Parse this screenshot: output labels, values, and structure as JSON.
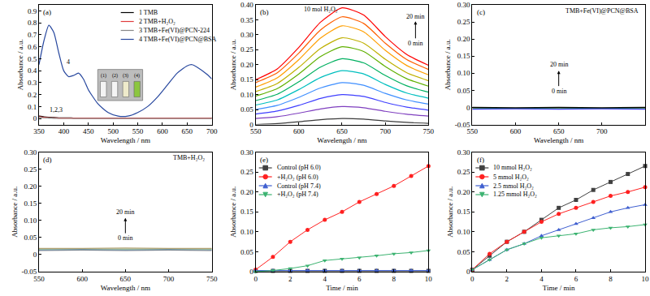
{
  "chart_data": [
    {
      "type": "line",
      "title": "(a)",
      "x_label": "Wavelength / nm",
      "y_label": "Absorbance / a.u.",
      "xlim": [
        350,
        700
      ],
      "xticks": [
        350,
        400,
        450,
        500,
        550,
        600,
        650,
        700
      ],
      "ylim": [
        -0.05,
        0.95
      ],
      "yticks": [
        0,
        0.1,
        0.2,
        0.3,
        0.4,
        0.5,
        0.6,
        0.7,
        0.8,
        0.9
      ],
      "grid": false,
      "legend": "upper right",
      "annotations": [
        "4",
        "1,2,3",
        "(1)",
        "(2)",
        "(3)",
        "(4)"
      ],
      "x": [
        350,
        360,
        370,
        380,
        390,
        400,
        410,
        420,
        430,
        440,
        450,
        470,
        490,
        510,
        530,
        550,
        570,
        590,
        610,
        630,
        650,
        660,
        670,
        690,
        700
      ],
      "series": [
        {
          "name": "1 TMB",
          "color": "#000000",
          "values": [
            0.02,
            0.014,
            0.01,
            0.008,
            0.006,
            0.005,
            0.005,
            0.004,
            0.004,
            0.004,
            0.004,
            0.004,
            0.004,
            0.004,
            0.004,
            0.004,
            0.004,
            0.004,
            0.004,
            0.004,
            0.004,
            0.004,
            0.004,
            0.004,
            0.004
          ]
        },
        {
          "name": "2 TMB+H₂O₂",
          "color": "#e03c3c",
          "values": [
            0.015,
            0.01,
            0.007,
            0.005,
            0.004,
            0.003,
            0.003,
            0.003,
            0.003,
            0.003,
            0.003,
            0.003,
            0.003,
            0.003,
            0.003,
            0.003,
            0.003,
            0.003,
            0.003,
            0.003,
            0.003,
            0.003,
            0.003,
            0.003,
            0.003
          ]
        },
        {
          "name": "3 TMB+Fe(VI)@PCN-224",
          "color": "#888888",
          "values": [
            0.01,
            0.006,
            0.004,
            0.002,
            0.001,
            0.001,
            0.001,
            0.001,
            0.001,
            0.001,
            0.001,
            0.001,
            0.001,
            0.001,
            0.001,
            0.001,
            0.001,
            0.001,
            0.001,
            0.001,
            0.001,
            0.001,
            0.001,
            0.001,
            0.001
          ]
        },
        {
          "name": "4 TMB+Fe(VI)@PCN@BSA",
          "color": "#27479e",
          "values": [
            0.45,
            0.65,
            0.78,
            0.72,
            0.55,
            0.4,
            0.35,
            0.36,
            0.38,
            0.33,
            0.24,
            0.12,
            0.05,
            0.02,
            0.02,
            0.05,
            0.1,
            0.18,
            0.28,
            0.38,
            0.44,
            0.45,
            0.43,
            0.37,
            0.33
          ]
        }
      ]
    },
    {
      "type": "line",
      "title": "(b)",
      "x_label": "Wavelength / nm",
      "y_label": "Absorbance / a.u.",
      "xlim": [
        550,
        750
      ],
      "xticks": [
        550,
        600,
        650,
        700,
        750
      ],
      "ylim": [
        0,
        0.4
      ],
      "yticks": [
        0,
        0.05,
        {
          "value": 0.1,
          "label": "0.10"
        },
        0.15,
        {
          "value": 0.2,
          "label": "0.20"
        },
        0.25,
        {
          "value": 0.3,
          "label": "0.30"
        },
        0.35,
        {
          "value": 0.4,
          "label": "0.40"
        }
      ],
      "grid": false,
      "annotations": [
        "10 mol H₂O₂",
        "20 min",
        "0 min"
      ],
      "x": [
        550,
        575,
        600,
        625,
        650,
        675,
        700,
        725,
        750
      ],
      "series": [
        {
          "color": "#3b3b3b",
          "values": [
            0,
            0.003,
            0.009,
            0.016,
            0.02,
            0.018,
            0.012,
            0.007,
            0.004
          ]
        },
        {
          "color": "#7f3fbf",
          "values": [
            0.02,
            0.026,
            0.038,
            0.052,
            0.06,
            0.056,
            0.044,
            0.034,
            0.028
          ]
        },
        {
          "color": "#3f3fff",
          "values": [
            0.035,
            0.045,
            0.064,
            0.087,
            0.1,
            0.094,
            0.074,
            0.058,
            0.048
          ]
        },
        {
          "color": "#3f8fff",
          "values": [
            0.05,
            0.064,
            0.091,
            0.122,
            0.14,
            0.131,
            0.104,
            0.082,
            0.068
          ]
        },
        {
          "color": "#00bfbf",
          "values": [
            0.065,
            0.082,
            0.117,
            0.157,
            0.18,
            0.169,
            0.134,
            0.105,
            0.088
          ]
        },
        {
          "color": "#00b060",
          "values": [
            0.08,
            0.101,
            0.143,
            0.192,
            0.22,
            0.206,
            0.164,
            0.129,
            0.108
          ]
        },
        {
          "color": "#60b000",
          "values": [
            0.095,
            0.12,
            0.169,
            0.227,
            0.26,
            0.244,
            0.194,
            0.153,
            0.128
          ]
        },
        {
          "color": "#bfb000",
          "values": [
            0.11,
            0.137,
            0.191,
            0.254,
            0.29,
            0.272,
            0.218,
            0.173,
            0.146
          ]
        },
        {
          "color": "#ff9f00",
          "values": [
            0.125,
            0.156,
            0.217,
            0.289,
            0.33,
            0.31,
            0.248,
            0.197,
            0.166
          ]
        },
        {
          "color": "#ff5f00",
          "values": [
            0.14,
            0.173,
            0.239,
            0.316,
            0.36,
            0.338,
            0.272,
            0.217,
            0.184
          ]
        },
        {
          "color": "#ff0000",
          "values": [
            0.15,
            0.186,
            0.258,
            0.342,
            0.39,
            0.366,
            0.294,
            0.234,
            0.198
          ]
        }
      ]
    },
    {
      "type": "line",
      "title": "(c)",
      "x_label": "Wavelength / nm",
      "y_label": "Absorbance / a.u.",
      "xlim": [
        550,
        750
      ],
      "xticks": [
        550,
        600,
        650,
        700,
        750
      ],
      "ylim": [
        -0.05,
        0.3
      ],
      "yticks": [
        -0.05,
        0,
        0.05,
        {
          "value": 0.1,
          "label": "0.10"
        },
        0.15,
        {
          "value": 0.2,
          "label": "0.20"
        },
        0.25,
        {
          "value": 0.3,
          "label": "0.30"
        }
      ],
      "grid": false,
      "annotations": [
        "TMB+Fe(VI)@PCN@BSA",
        "20 min",
        "0 min"
      ],
      "x": [
        550,
        600,
        650,
        700,
        750
      ],
      "series": [
        {
          "color": "#e03c3c",
          "values": [
            -0.004,
            -0.003,
            -0.004,
            -0.003,
            -0.004
          ]
        },
        {
          "color": "#2e9b45",
          "values": [
            -0.002,
            -0.003,
            -0.002,
            -0.003,
            -0.002
          ]
        },
        {
          "color": "#3f3fff",
          "values": [
            -0.005,
            -0.004,
            -0.005,
            -0.004,
            -0.005
          ]
        },
        {
          "color": "#000000",
          "values": [
            0,
            -0.001,
            0,
            -0.001,
            0
          ]
        }
      ]
    },
    {
      "type": "line",
      "title": "(d)",
      "x_label": "Wavelength / nm",
      "y_label": "Absorbance / a.u.",
      "xlim": [
        550,
        750
      ],
      "xticks": [
        550,
        600,
        650,
        700,
        750
      ],
      "ylim": [
        -0.05,
        0.3
      ],
      "yticks": [
        -0.05,
        0,
        0.05,
        {
          "value": 0.1,
          "label": "0.10"
        },
        0.15,
        {
          "value": 0.2,
          "label": "0.20"
        },
        0.25,
        {
          "value": 0.3,
          "label": "0.30"
        }
      ],
      "grid": false,
      "annotations": [
        "TMB+H₂O₂",
        "20 min",
        "0 min"
      ],
      "x": [
        550,
        600,
        650,
        700,
        750
      ],
      "series": [
        {
          "color": "#888888",
          "values": [
            0.012,
            0.013,
            0.012,
            0.013,
            0.012
          ]
        },
        {
          "color": "#6a8caf",
          "values": [
            0.014,
            0.015,
            0.014,
            0.015,
            0.014
          ]
        },
        {
          "color": "#8fbc8f",
          "values": [
            0.016,
            0.017,
            0.016,
            0.017,
            0.016
          ]
        },
        {
          "color": "#b0a070",
          "values": [
            0.018,
            0.018,
            0.019,
            0.018,
            0.018
          ]
        }
      ]
    },
    {
      "type": "line",
      "title": "(e)",
      "x_label": "Time / min",
      "y_label": "Absorbance / a.u.",
      "xlim": [
        0,
        10
      ],
      "xticks": [
        0,
        2,
        4,
        6,
        8,
        10
      ],
      "ylim": [
        0,
        0.3
      ],
      "yticks": [
        0,
        0.05,
        {
          "value": 0.1,
          "label": "0.10"
        },
        0.15,
        {
          "value": 0.2,
          "label": "0.20"
        },
        0.25,
        {
          "value": 0.3,
          "label": "0.30"
        }
      ],
      "grid": false,
      "legend": "upper left",
      "x": [
        0,
        1,
        2,
        3,
        4,
        5,
        6,
        7,
        8,
        9,
        10
      ],
      "series": [
        {
          "name": "Control (pH 6.0)",
          "color": "#404040",
          "marker": "square",
          "values": [
            0.002,
            0.002,
            0.002,
            0.002,
            0.002,
            0.002,
            0.002,
            0.002,
            0.002,
            0.002,
            0.002
          ]
        },
        {
          "name": "+H₂O₂ (pH 6.0)",
          "color": "#ff2020",
          "marker": "circle",
          "values": [
            0.005,
            0.037,
            0.075,
            0.105,
            0.13,
            0.15,
            0.175,
            0.195,
            0.215,
            0.24,
            0.265
          ]
        },
        {
          "name": "Control (pH 7.4)",
          "color": "#3f5fd0",
          "marker": "triangle-up",
          "values": [
            0.003,
            0.003,
            0.003,
            0.003,
            0.003,
            0.003,
            0.003,
            0.003,
            0.003,
            0.003,
            0.003
          ]
        },
        {
          "name": "+H₂O₂ (pH 7.4)",
          "color": "#3cb371",
          "marker": "triangle-down",
          "values": [
            0,
            0.003,
            0.008,
            0.015,
            0.028,
            0.032,
            0.035,
            0.04,
            0.045,
            0.048,
            0.053
          ]
        }
      ]
    },
    {
      "type": "line",
      "title": "(f)",
      "x_label": "Time / min",
      "y_label": "Absorbance / a.u.",
      "xlim": [
        0,
        10
      ],
      "xticks": [
        0,
        2,
        4,
        6,
        8,
        10
      ],
      "ylim": [
        0,
        0.3
      ],
      "yticks": [
        0,
        0.05,
        {
          "value": 0.1,
          "label": "0.10"
        },
        0.15,
        {
          "value": 0.2,
          "label": "0.20"
        },
        0.25,
        {
          "value": 0.3,
          "label": "0.30"
        }
      ],
      "grid": false,
      "legend": "upper left",
      "x": [
        0,
        1,
        2,
        3,
        4,
        5,
        6,
        7,
        8,
        9,
        10
      ],
      "series": [
        {
          "name": "10 mmol H₂O₂",
          "color": "#404040",
          "marker": "square",
          "values": [
            0.005,
            0.04,
            0.075,
            0.1,
            0.13,
            0.16,
            0.18,
            0.205,
            0.225,
            0.245,
            0.265
          ]
        },
        {
          "name": "5 mmol H₂O₂",
          "color": "#ff2020",
          "marker": "circle",
          "values": [
            0.005,
            0.045,
            0.075,
            0.1,
            0.125,
            0.145,
            0.16,
            0.175,
            0.19,
            0.2,
            0.212
          ]
        },
        {
          "name": "2.5 mmol H₂O₂",
          "color": "#3f5fd0",
          "marker": "triangle-up",
          "values": [
            0.005,
            0.03,
            0.055,
            0.07,
            0.09,
            0.105,
            0.12,
            0.135,
            0.15,
            0.16,
            0.168
          ]
        },
        {
          "name": "1.25 mmol H₂O₂",
          "color": "#3cb371",
          "marker": "triangle-down",
          "values": [
            0.005,
            0.03,
            0.055,
            0.07,
            0.085,
            0.09,
            0.095,
            0.105,
            0.11,
            0.113,
            0.118
          ]
        }
      ]
    }
  ]
}
